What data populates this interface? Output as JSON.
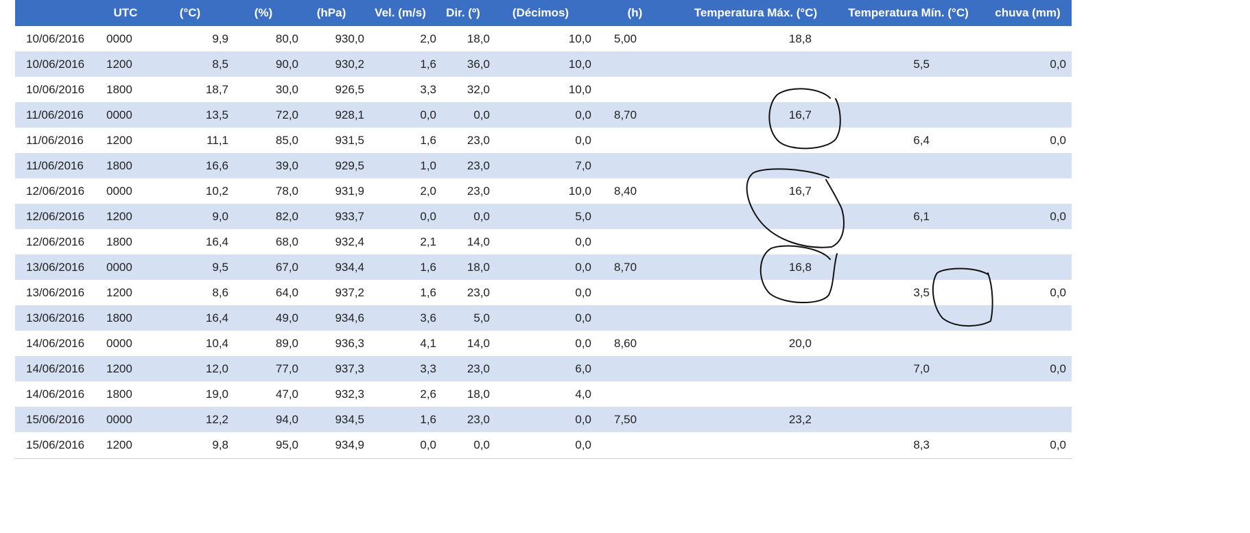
{
  "headers": [
    "",
    "UTC",
    "(°C)",
    "(%)",
    "(hPa)",
    "Vel. (m/s)",
    "Dir. (º)",
    "(Décimos)",
    "(h)",
    "Temperatura Máx. (°C)",
    "Temperatura Mín. (°C)",
    "chuva (mm)"
  ],
  "rows": [
    {
      "date": "10/06/2016",
      "utc": "0000",
      "temp": "9,9",
      "umid": "80,0",
      "press": "930,0",
      "vel": "2,0",
      "dir": "18,0",
      "neb": "10,0",
      "ins": "5,00",
      "tmax": "18,8",
      "tmin": "",
      "chuva": ""
    },
    {
      "date": "10/06/2016",
      "utc": "1200",
      "temp": "8,5",
      "umid": "90,0",
      "press": "930,2",
      "vel": "1,6",
      "dir": "36,0",
      "neb": "10,0",
      "ins": "",
      "tmax": "",
      "tmin": "5,5",
      "chuva": "0,0"
    },
    {
      "date": "10/06/2016",
      "utc": "1800",
      "temp": "18,7",
      "umid": "30,0",
      "press": "926,5",
      "vel": "3,3",
      "dir": "32,0",
      "neb": "10,0",
      "ins": "",
      "tmax": "",
      "tmin": "",
      "chuva": ""
    },
    {
      "date": "11/06/2016",
      "utc": "0000",
      "temp": "13,5",
      "umid": "72,0",
      "press": "928,1",
      "vel": "0,0",
      "dir": "0,0",
      "neb": "0,0",
      "ins": "8,70",
      "tmax": "16,7",
      "tmin": "",
      "chuva": ""
    },
    {
      "date": "11/06/2016",
      "utc": "1200",
      "temp": "11,1",
      "umid": "85,0",
      "press": "931,5",
      "vel": "1,6",
      "dir": "23,0",
      "neb": "0,0",
      "ins": "",
      "tmax": "",
      "tmin": "6,4",
      "chuva": "0,0"
    },
    {
      "date": "11/06/2016",
      "utc": "1800",
      "temp": "16,6",
      "umid": "39,0",
      "press": "929,5",
      "vel": "1,0",
      "dir": "23,0",
      "neb": "7,0",
      "ins": "",
      "tmax": "",
      "tmin": "",
      "chuva": ""
    },
    {
      "date": "12/06/2016",
      "utc": "0000",
      "temp": "10,2",
      "umid": "78,0",
      "press": "931,9",
      "vel": "2,0",
      "dir": "23,0",
      "neb": "10,0",
      "ins": "8,40",
      "tmax": "16,7",
      "tmin": "",
      "chuva": ""
    },
    {
      "date": "12/06/2016",
      "utc": "1200",
      "temp": "9,0",
      "umid": "82,0",
      "press": "933,7",
      "vel": "0,0",
      "dir": "0,0",
      "neb": "5,0",
      "ins": "",
      "tmax": "",
      "tmin": "6,1",
      "chuva": "0,0"
    },
    {
      "date": "12/06/2016",
      "utc": "1800",
      "temp": "16,4",
      "umid": "68,0",
      "press": "932,4",
      "vel": "2,1",
      "dir": "14,0",
      "neb": "0,0",
      "ins": "",
      "tmax": "",
      "tmin": "",
      "chuva": ""
    },
    {
      "date": "13/06/2016",
      "utc": "0000",
      "temp": "9,5",
      "umid": "67,0",
      "press": "934,4",
      "vel": "1,6",
      "dir": "18,0",
      "neb": "0,0",
      "ins": "8,70",
      "tmax": "16,8",
      "tmin": "",
      "chuva": ""
    },
    {
      "date": "13/06/2016",
      "utc": "1200",
      "temp": "8,6",
      "umid": "64,0",
      "press": "937,2",
      "vel": "1,6",
      "dir": "23,0",
      "neb": "0,0",
      "ins": "",
      "tmax": "",
      "tmin": "3,5",
      "chuva": "0,0"
    },
    {
      "date": "13/06/2016",
      "utc": "1800",
      "temp": "16,4",
      "umid": "49,0",
      "press": "934,6",
      "vel": "3,6",
      "dir": "5,0",
      "neb": "0,0",
      "ins": "",
      "tmax": "",
      "tmin": "",
      "chuva": ""
    },
    {
      "date": "14/06/2016",
      "utc": "0000",
      "temp": "10,4",
      "umid": "89,0",
      "press": "936,3",
      "vel": "4,1",
      "dir": "14,0",
      "neb": "0,0",
      "ins": "8,60",
      "tmax": "20,0",
      "tmin": "",
      "chuva": ""
    },
    {
      "date": "14/06/2016",
      "utc": "1200",
      "temp": "12,0",
      "umid": "77,0",
      "press": "937,3",
      "vel": "3,3",
      "dir": "23,0",
      "neb": "6,0",
      "ins": "",
      "tmax": "",
      "tmin": "7,0",
      "chuva": "0,0"
    },
    {
      "date": "14/06/2016",
      "utc": "1800",
      "temp": "19,0",
      "umid": "47,0",
      "press": "932,3",
      "vel": "2,6",
      "dir": "18,0",
      "neb": "4,0",
      "ins": "",
      "tmax": "",
      "tmin": "",
      "chuva": ""
    },
    {
      "date": "15/06/2016",
      "utc": "0000",
      "temp": "12,2",
      "umid": "94,0",
      "press": "934,5",
      "vel": "1,6",
      "dir": "23,0",
      "neb": "0,0",
      "ins": "7,50",
      "tmax": "23,2",
      "tmin": "",
      "chuva": ""
    },
    {
      "date": "15/06/2016",
      "utc": "1200",
      "temp": "9,8",
      "umid": "95,0",
      "press": "934,9",
      "vel": "0,0",
      "dir": "0,0",
      "neb": "0,0",
      "ins": "",
      "tmax": "",
      "tmin": "8,3",
      "chuva": "0,0"
    }
  ],
  "colors": {
    "header_bg": "#3a6fc4",
    "header_text": "#ffffff",
    "row_even": "#d5e0f2",
    "row_odd": "#ffffff",
    "annotation_ink": "#111111"
  }
}
